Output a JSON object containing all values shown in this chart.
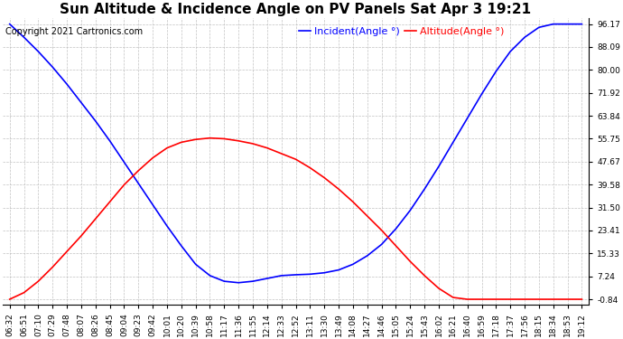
{
  "title": "Sun Altitude & Incidence Angle on PV Panels Sat Apr 3 19:21",
  "copyright": "Copyright 2021 Cartronics.com",
  "legend_incident": "Incident(Angle °)",
  "legend_altitude": "Altitude(Angle °)",
  "incident_color": "#0000FF",
  "altitude_color": "#FF0000",
  "ymin": -0.84,
  "ymax": 96.17,
  "yticks": [
    96.17,
    88.09,
    80.0,
    71.92,
    63.84,
    55.75,
    47.67,
    39.58,
    31.5,
    23.41,
    15.33,
    7.24,
    -0.84
  ],
  "background_color": "#FFFFFF",
  "grid_color": "#BBBBBB",
  "time_labels": [
    "06:32",
    "06:51",
    "07:10",
    "07:29",
    "07:48",
    "08:07",
    "08:26",
    "08:45",
    "09:04",
    "09:23",
    "09:42",
    "10:01",
    "10:20",
    "10:39",
    "10:58",
    "11:17",
    "11:36",
    "11:55",
    "12:14",
    "12:33",
    "12:52",
    "13:11",
    "13:30",
    "13:49",
    "14:08",
    "14:27",
    "14:46",
    "15:05",
    "15:24",
    "15:43",
    "16:02",
    "16:21",
    "16:40",
    "16:59",
    "17:18",
    "17:37",
    "17:56",
    "18:15",
    "18:34",
    "18:53",
    "19:12"
  ],
  "incident_values": [
    96.17,
    91.5,
    86.5,
    81.0,
    75.0,
    68.5,
    62.0,
    55.0,
    47.5,
    40.0,
    32.5,
    25.0,
    18.0,
    11.5,
    7.5,
    5.5,
    5.0,
    5.5,
    6.5,
    7.5,
    7.8,
    8.0,
    8.5,
    9.5,
    11.5,
    14.5,
    18.5,
    24.0,
    30.5,
    38.0,
    46.0,
    54.5,
    63.0,
    71.5,
    79.5,
    86.5,
    91.5,
    95.0,
    96.17,
    96.17,
    96.17
  ],
  "altitude_values": [
    -0.84,
    1.5,
    5.5,
    10.5,
    16.0,
    21.5,
    27.5,
    33.5,
    39.5,
    44.5,
    49.0,
    52.5,
    54.5,
    55.5,
    56.0,
    55.75,
    55.0,
    54.0,
    52.5,
    50.5,
    48.5,
    45.5,
    42.0,
    38.0,
    33.5,
    28.5,
    23.5,
    18.0,
    12.5,
    7.5,
    3.0,
    -0.2,
    -0.84,
    -0.84,
    -0.84,
    -0.84,
    -0.84,
    -0.84,
    -0.84,
    -0.84,
    -0.84
  ],
  "title_fontsize": 11,
  "tick_fontsize": 6.5,
  "legend_fontsize": 8,
  "copyright_fontsize": 7
}
